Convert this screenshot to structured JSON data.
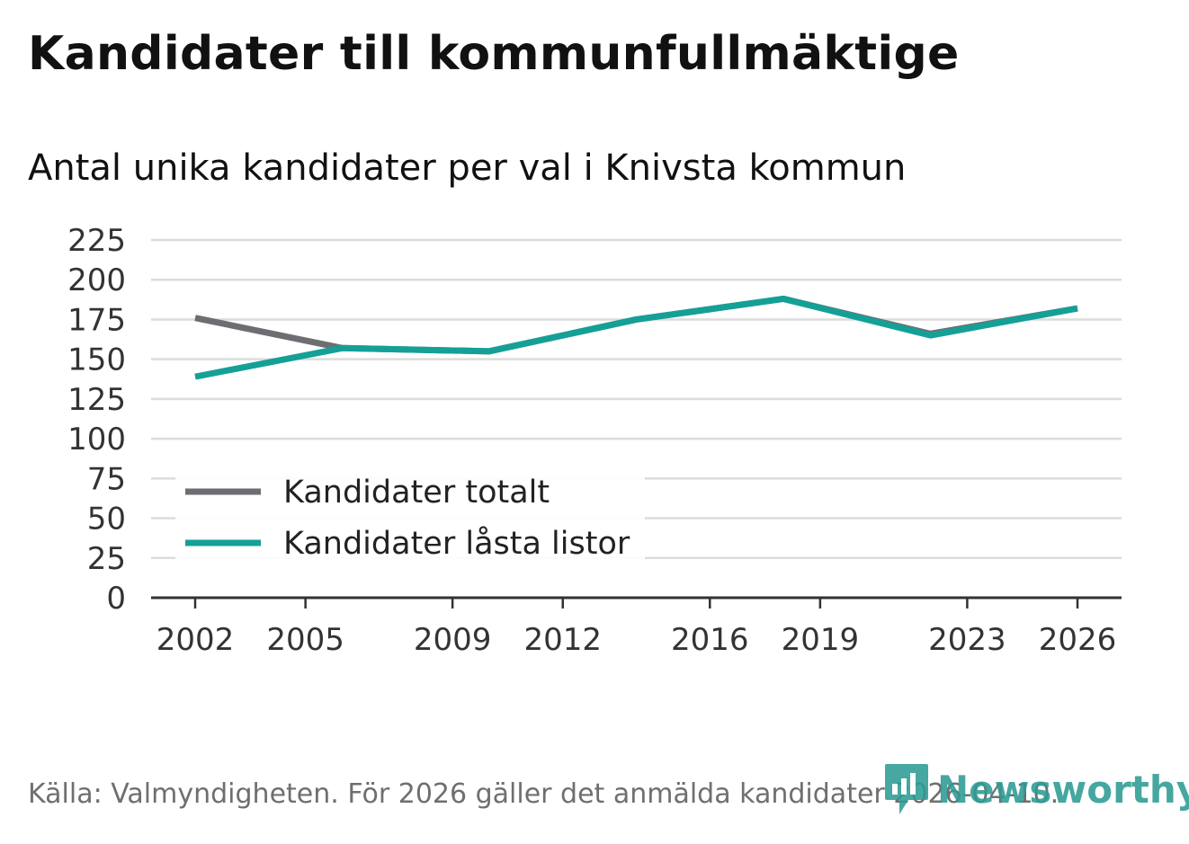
{
  "chart_data": {
    "type": "line",
    "title": "Kandidater till kommunfullmäktige",
    "subtitle": "Antal unika kandidater per val i Knivsta kommun",
    "x": [
      2002,
      2006,
      2010,
      2014,
      2018,
      2022,
      2026
    ],
    "x_ticks": [
      2002,
      2005,
      2009,
      2012,
      2016,
      2019,
      2023,
      2026
    ],
    "xlim": [
      2002,
      2026
    ],
    "y_ticks": [
      0,
      25,
      50,
      75,
      100,
      125,
      150,
      175,
      200,
      225
    ],
    "ylim": [
      0,
      225
    ],
    "grid": true,
    "legend_position": "bottom-left",
    "series": [
      {
        "name": "Kandidater totalt",
        "color": "#6e6d72",
        "values": [
          176,
          157,
          155,
          175,
          188,
          166,
          182
        ]
      },
      {
        "name": "Kandidater låsta listor",
        "color": "#14a097",
        "values": [
          139,
          157,
          155,
          175,
          188,
          165,
          182
        ]
      }
    ],
    "source": "Källa: Valmyndigheten. För 2026 gäller det anmälda kandidater 2026-04-10."
  },
  "brand": {
    "name": "Newsworthy",
    "color": "#2c9c94"
  }
}
